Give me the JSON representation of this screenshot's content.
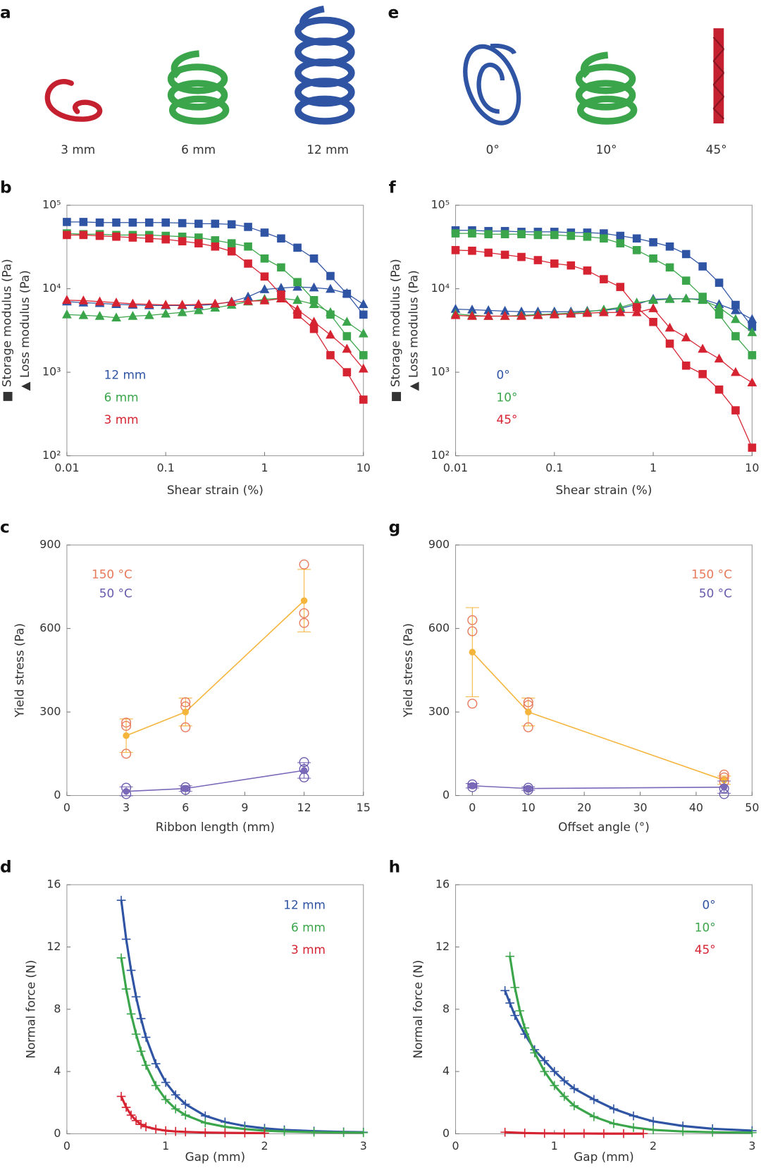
{
  "illustrations": [
    {
      "letter": "a",
      "labels": [
        "3 mm",
        "6 mm",
        "12 mm"
      ]
    },
    {
      "letter": "e",
      "labels": [
        "0°",
        "10°",
        "45°"
      ]
    }
  ],
  "chart_data": [
    {
      "letter": "b",
      "type": "line",
      "xscale": "log",
      "yscale": "log",
      "xlabel": "Shear strain (%)",
      "ylabel": [
        "■ Storage modulus (Pa)",
        "▲ Loss modulus (Pa)"
      ],
      "xlim": [
        0.01,
        10
      ],
      "ylim": [
        100,
        100000
      ],
      "xticks": [
        0.01,
        0.1,
        1,
        10
      ],
      "yticks": [
        {
          "value": 100,
          "label": "10²"
        },
        {
          "value": 1000,
          "label": "10³"
        },
        {
          "value": 10000,
          "label": "10⁴"
        },
        {
          "value": 100000,
          "label": "10⁵"
        }
      ],
      "legend": "lower left",
      "x": [
        0.01,
        0.0147,
        0.0215,
        0.0316,
        0.0464,
        0.0681,
        0.1,
        0.147,
        0.215,
        0.316,
        0.464,
        0.681,
        1,
        1.47,
        2.15,
        3.16,
        4.64,
        6.81,
        10
      ],
      "series": [
        {
          "name": "12 mm",
          "color": "#2f54a3",
          "storage": [
            63000,
            63000,
            62000,
            62000,
            62000,
            62000,
            62000,
            61000,
            60000,
            60000,
            59000,
            55000,
            47000,
            40000,
            31000,
            23000,
            14200,
            8700,
            4900
          ],
          "loss": [
            7000,
            6800,
            6700,
            6500,
            6400,
            6300,
            6300,
            6300,
            6300,
            6500,
            7000,
            8000,
            9800,
            10200,
            10500,
            10300,
            9900,
            8800,
            6500
          ]
        },
        {
          "name": "6 mm",
          "color": "#3aa54a",
          "storage": [
            46000,
            45000,
            45000,
            44000,
            44000,
            44000,
            43000,
            42000,
            41000,
            38000,
            35000,
            32000,
            23000,
            18000,
            12000,
            7300,
            4900,
            2700,
            1600
          ],
          "loss": [
            4900,
            4800,
            4700,
            4500,
            4700,
            4800,
            5000,
            5200,
            5500,
            5900,
            6400,
            7000,
            7500,
            7700,
            7300,
            6500,
            5200,
            4000,
            2900
          ]
        },
        {
          "name": "3 mm",
          "color": "#d62331",
          "storage": [
            44000,
            44000,
            43000,
            42000,
            41000,
            40000,
            39000,
            37000,
            35000,
            32000,
            28000,
            20000,
            14000,
            8500,
            4900,
            3300,
            1600,
            1000,
            470
          ],
          "loss": [
            7300,
            7200,
            7000,
            6800,
            6600,
            6500,
            6400,
            6400,
            6500,
            6600,
            6900,
            7100,
            7200,
            7600,
            5600,
            4000,
            2800,
            1900,
            1100
          ]
        }
      ]
    },
    {
      "letter": "f",
      "type": "line",
      "xscale": "log",
      "yscale": "log",
      "xlabel": "Shear strain (%)",
      "ylabel": [
        "■ Storage modulus (Pa)",
        "▲ Loss modulus (Pa)"
      ],
      "xlim": [
        0.01,
        10
      ],
      "ylim": [
        100,
        100000
      ],
      "xticks": [
        0.01,
        0.1,
        1,
        10
      ],
      "yticks": [
        {
          "value": 100,
          "label": "10²"
        },
        {
          "value": 1000,
          "label": "10³"
        },
        {
          "value": 10000,
          "label": "10⁴"
        },
        {
          "value": 100000,
          "label": "10⁵"
        }
      ],
      "legend": "lower left",
      "x": [
        0.01,
        0.0147,
        0.0215,
        0.0316,
        0.0464,
        0.0681,
        0.1,
        0.147,
        0.215,
        0.316,
        0.464,
        0.681,
        1,
        1.47,
        2.15,
        3.16,
        4.64,
        6.81,
        10
      ],
      "series": [
        {
          "name": "0°",
          "color": "#2f54a3",
          "storage": [
            50000,
            50000,
            49000,
            49000,
            48000,
            48000,
            48000,
            47000,
            47000,
            46000,
            43000,
            40000,
            36000,
            32000,
            26000,
            18500,
            11800,
            6400,
            3500
          ],
          "loss": [
            5700,
            5600,
            5500,
            5400,
            5300,
            5300,
            5300,
            5300,
            5400,
            5500,
            5800,
            6500,
            7500,
            7600,
            7600,
            7500,
            6500,
            5500,
            4300
          ]
        },
        {
          "name": "10°",
          "color": "#3aa54a",
          "storage": [
            46000,
            46000,
            45000,
            45000,
            45000,
            44000,
            44000,
            43000,
            42000,
            40000,
            35000,
            29000,
            23000,
            18000,
            12500,
            8000,
            4900,
            2700,
            1600
          ],
          "loss": [
            5000,
            4800,
            4700,
            4700,
            4800,
            4900,
            5000,
            5100,
            5300,
            5600,
            6000,
            6800,
            7300,
            7500,
            7600,
            7300,
            6000,
            4300,
            3000
          ]
        },
        {
          "name": "45°",
          "color": "#d62331",
          "storage": [
            29000,
            28500,
            27000,
            25500,
            24000,
            22000,
            20000,
            19000,
            16500,
            13000,
            10500,
            6000,
            4000,
            2200,
            1200,
            950,
            620,
            350,
            125
          ],
          "loss": [
            4800,
            4700,
            4700,
            4700,
            4700,
            4800,
            4900,
            5000,
            5100,
            5200,
            5200,
            5200,
            5800,
            3400,
            2600,
            1900,
            1450,
            1000,
            750
          ]
        }
      ]
    },
    {
      "letter": "c",
      "type": "errorbar",
      "xlabel": "Ribbon length (mm)",
      "ylabel": "Yield stress (Pa)",
      "xlim": [
        0,
        15
      ],
      "ylim": [
        0,
        900
      ],
      "xticks": [
        0,
        3,
        6,
        9,
        12,
        15
      ],
      "yticks": [
        0,
        300,
        600,
        900
      ],
      "legend": "upper left",
      "series": [
        {
          "name": "150 °C",
          "color": "#e8795a",
          "mean_color": "#f5b53c",
          "x": [
            3,
            6,
            12
          ],
          "values": [
            215,
            300,
            700
          ],
          "errors": [
            60,
            50,
            112
          ],
          "replicates": [
            [
              150,
              250,
              262
            ],
            [
              245,
              320,
              335
            ],
            [
              620,
              655,
              830
            ]
          ]
        },
        {
          "name": "50 °C",
          "color": "#6a5aad",
          "mean_color": "#7a68b8",
          "x": [
            3,
            6,
            12
          ],
          "values": [
            15,
            25,
            90
          ],
          "errors": [
            16,
            10,
            28
          ],
          "replicates": [
            [
              5,
              28
            ],
            [
              20,
              30
            ],
            [
              65,
              95,
              120
            ]
          ]
        }
      ]
    },
    {
      "letter": "g",
      "type": "errorbar",
      "xlabel": "Offset angle (°)",
      "ylabel": "Yield stress (Pa)",
      "xlim": [
        -3,
        50
      ],
      "ylim": [
        0,
        900
      ],
      "xticks": [
        0,
        10,
        20,
        30,
        40,
        50
      ],
      "yticks": [
        0,
        300,
        600,
        900
      ],
      "legend": "upper right",
      "series": [
        {
          "name": "150 °C",
          "color": "#e8795a",
          "mean_color": "#f5b53c",
          "x": [
            0,
            10,
            45
          ],
          "values": [
            515,
            300,
            55
          ],
          "errors": [
            160,
            50,
            15
          ],
          "replicates": [
            [
              330,
              590,
              630
            ],
            [
              245,
              325,
              335
            ],
            [
              50,
              65,
              75
            ]
          ]
        },
        {
          "name": "50 °C",
          "color": "#6a5aad",
          "mean_color": "#7a68b8",
          "x": [
            0,
            10,
            45
          ],
          "values": [
            35,
            25,
            30
          ],
          "errors": [
            8,
            6,
            22
          ],
          "replicates": [
            [
              30,
              40
            ],
            [
              20,
              28
            ],
            [
              5,
              25
            ]
          ]
        }
      ]
    },
    {
      "letter": "d",
      "type": "scatter",
      "xlabel": "Gap (mm)",
      "ylabel": "Normal force (N)",
      "xlim": [
        0,
        3
      ],
      "ylim": [
        0,
        16
      ],
      "xticks": [
        0,
        1,
        2,
        3
      ],
      "yticks": [
        0,
        4,
        8,
        12,
        16
      ],
      "legend": "upper right",
      "series": [
        {
          "name": "12 mm",
          "color": "#2f54a3",
          "x": [
            0.55,
            0.6,
            0.65,
            0.7,
            0.75,
            0.8,
            0.9,
            1.0,
            1.1,
            1.2,
            1.4,
            1.6,
            1.8,
            2.0,
            2.2,
            2.5,
            2.8,
            3.0
          ],
          "values": [
            15.0,
            12.5,
            10.5,
            8.8,
            7.4,
            6.2,
            4.5,
            3.3,
            2.5,
            1.9,
            1.15,
            0.75,
            0.5,
            0.35,
            0.25,
            0.17,
            0.12,
            0.1
          ]
        },
        {
          "name": "6 mm",
          "color": "#3aa54a",
          "x": [
            0.55,
            0.6,
            0.65,
            0.7,
            0.75,
            0.8,
            0.9,
            1.0,
            1.1,
            1.2,
            1.4,
            1.6,
            1.8,
            2.0,
            2.2,
            2.5,
            2.8,
            3.0
          ],
          "values": [
            11.3,
            9.3,
            7.7,
            6.4,
            5.3,
            4.4,
            3.1,
            2.2,
            1.6,
            1.2,
            0.7,
            0.45,
            0.3,
            0.2,
            0.15,
            0.1,
            0.08,
            0.07
          ]
        },
        {
          "name": "3 mm",
          "color": "#d62331",
          "x": [
            0.55,
            0.6,
            0.65,
            0.7,
            0.75,
            0.8,
            0.9,
            1.0,
            1.1,
            1.2,
            1.4,
            1.6,
            1.8,
            2.0
          ],
          "values": [
            2.4,
            1.7,
            1.2,
            0.85,
            0.6,
            0.45,
            0.3,
            0.2,
            0.15,
            0.12,
            0.08,
            0.06,
            0.05,
            0.04
          ]
        }
      ]
    },
    {
      "letter": "h",
      "type": "scatter",
      "xlabel": "Gap (mm)",
      "ylabel": "Normal force (N)",
      "xlim": [
        0,
        3
      ],
      "ylim": [
        0,
        16
      ],
      "xticks": [
        0,
        1,
        2,
        3
      ],
      "yticks": [
        0,
        4,
        8,
        12,
        16
      ],
      "legend": "upper right",
      "series": [
        {
          "name": "0°",
          "color": "#2f54a3",
          "x": [
            0.5,
            0.55,
            0.6,
            0.7,
            0.8,
            0.9,
            1.0,
            1.1,
            1.2,
            1.4,
            1.6,
            1.8,
            2.0,
            2.3,
            2.6,
            3.0
          ],
          "values": [
            9.2,
            8.4,
            7.6,
            6.4,
            5.4,
            4.7,
            4.0,
            3.4,
            2.9,
            2.2,
            1.6,
            1.15,
            0.8,
            0.5,
            0.32,
            0.2
          ]
        },
        {
          "name": "10°",
          "color": "#3aa54a",
          "x": [
            0.55,
            0.6,
            0.65,
            0.7,
            0.8,
            0.9,
            1.0,
            1.1,
            1.2,
            1.4,
            1.6,
            1.8,
            2.0,
            2.3,
            2.6,
            3.0
          ],
          "values": [
            11.4,
            9.4,
            7.9,
            6.8,
            5.2,
            4.0,
            3.1,
            2.4,
            1.8,
            1.1,
            0.65,
            0.4,
            0.25,
            0.15,
            0.1,
            0.07
          ]
        },
        {
          "name": "45°",
          "color": "#d62331",
          "x": [
            0.5,
            0.7,
            0.9,
            1.1,
            1.3,
            1.5,
            1.7,
            1.9
          ],
          "values": [
            0.1,
            0.05,
            0.03,
            0.02,
            0.02,
            0.01,
            0.01,
            0.01
          ]
        }
      ]
    }
  ]
}
